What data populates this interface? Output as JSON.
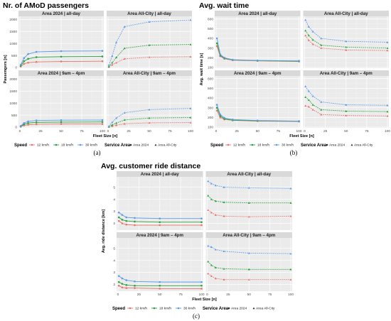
{
  "colors": {
    "12": "#e8746a",
    "18": "#27a33c",
    "30": "#5c9ce6"
  },
  "chart_data": [
    {
      "type": "line",
      "title": "Nr. of AMoD passengers",
      "caption": "(a)",
      "ylabel": "Passengers [n]",
      "xlabel": "Fleet Size [n]",
      "x": [
        1,
        5,
        10,
        20,
        50,
        100
      ],
      "xticks": [
        0,
        25,
        50,
        75,
        100
      ],
      "xlim": [
        0,
        100
      ],
      "ylim": [
        0,
        2100
      ],
      "yticks": [
        0,
        500,
        1000,
        1500,
        2000
      ],
      "panels": [
        {
          "label": "Area 2024 | all-day",
          "marker": "circle",
          "dash": false,
          "series": [
            {
              "speed": "12",
              "values": [
                40,
                150,
                200,
                230,
                250,
                260
              ]
            },
            {
              "speed": "18",
              "values": [
                70,
                260,
                360,
                430,
                450,
                460
              ]
            },
            {
              "speed": "30",
              "values": [
                110,
                390,
                560,
                650,
                680,
                690
              ]
            }
          ]
        },
        {
          "label": "Area All-City | all-day",
          "marker": "triangle",
          "dash": true,
          "series": [
            {
              "speed": "12",
              "values": [
                20,
                110,
                200,
                360,
                430,
                450
              ]
            },
            {
              "speed": "18",
              "values": [
                40,
                200,
                420,
                800,
                930,
                960
              ]
            },
            {
              "speed": "30",
              "values": [
                100,
                480,
                1050,
                1700,
                1900,
                1980
              ]
            }
          ]
        },
        {
          "label": "Area 2024 | 9am – 4pm",
          "marker": "circle",
          "dash": false,
          "series": [
            {
              "speed": "12",
              "values": [
                20,
                70,
                100,
                120,
                130,
                130
              ]
            },
            {
              "speed": "18",
              "values": [
                35,
                120,
                170,
                200,
                210,
                215
              ]
            },
            {
              "speed": "30",
              "values": [
                50,
                170,
                240,
                280,
                290,
                295
              ]
            }
          ]
        },
        {
          "label": "Area All-City | 9am – 4pm",
          "marker": "triangle",
          "dash": true,
          "series": [
            {
              "speed": "12",
              "values": [
                10,
                40,
                80,
                140,
                180,
                190
              ]
            },
            {
              "speed": "18",
              "values": [
                20,
                90,
                170,
                300,
                380,
                400
              ]
            },
            {
              "speed": "30",
              "values": [
                40,
                200,
                380,
                600,
                730,
                780
              ]
            }
          ]
        }
      ]
    },
    {
      "type": "line",
      "title": "Avg. wait time",
      "caption": "(b)",
      "ylabel": "Avg. wait time [s]",
      "xlabel": "Fleet Size [n]",
      "x": [
        1,
        5,
        10,
        20,
        50,
        100
      ],
      "xticks": [
        0,
        25,
        50,
        75,
        100
      ],
      "xlim": [
        0,
        100
      ],
      "ylim": [
        100,
        620
      ],
      "yticks": [
        100,
        200,
        300,
        400,
        500,
        600
      ],
      "panels": [
        {
          "label": "Area 2024 | all-day",
          "marker": "circle",
          "dash": false,
          "series": [
            {
              "speed": "12",
              "values": [
                320,
                215,
                190,
                175,
                168,
                162
              ]
            },
            {
              "speed": "18",
              "values": [
                350,
                225,
                195,
                178,
                170,
                165
              ]
            },
            {
              "speed": "30",
              "values": [
                400,
                235,
                200,
                180,
                172,
                168
              ]
            }
          ]
        },
        {
          "label": "Area All-City | all-day",
          "marker": "triangle",
          "dash": true,
          "series": [
            {
              "speed": "12",
              "values": [
                430,
                380,
                340,
                300,
                280,
                275
              ]
            },
            {
              "speed": "18",
              "values": [
                480,
                430,
                385,
                330,
                310,
                300
              ]
            },
            {
              "speed": "30",
              "values": [
                590,
                520,
                470,
                400,
                370,
                360
              ]
            }
          ]
        },
        {
          "label": "Area 2024 | 9am – 4pm",
          "marker": "circle",
          "dash": false,
          "series": [
            {
              "speed": "12",
              "values": [
                270,
                200,
                180,
                170,
                162,
                158
              ]
            },
            {
              "speed": "18",
              "values": [
                300,
                215,
                185,
                172,
                165,
                160
              ]
            },
            {
              "speed": "30",
              "values": [
                330,
                230,
                195,
                178,
                168,
                162
              ]
            }
          ]
        },
        {
          "label": "Area All-City | 9am – 4pm",
          "marker": "triangle",
          "dash": true,
          "series": [
            {
              "speed": "12",
              "values": [
                320,
                310,
                280,
                230,
                220,
                215
              ]
            },
            {
              "speed": "18",
              "values": [
                410,
                380,
                330,
                280,
                265,
                260
              ]
            },
            {
              "speed": "30",
              "values": [
                520,
                470,
                420,
                360,
                330,
                325
              ]
            }
          ]
        }
      ]
    },
    {
      "type": "line",
      "title": "Avg. customer ride distance",
      "caption": "(c)",
      "ylabel": "Avg. ride distance [km]",
      "xlabel": "Fleet Size [n]",
      "x": [
        1,
        5,
        10,
        20,
        50,
        100
      ],
      "xticks": [
        0,
        25,
        50,
        75,
        100
      ],
      "xlim": [
        0,
        100
      ],
      "ylim": [
        1.5,
        5.8
      ],
      "yticks": [
        2,
        3,
        4,
        5
      ],
      "panels": [
        {
          "label": "Area 2024 | all-day",
          "marker": "circle",
          "dash": false,
          "series": [
            {
              "speed": "12",
              "values": [
                2.2,
                2.0,
                1.9,
                1.85,
                1.85,
                1.85
              ]
            },
            {
              "speed": "18",
              "values": [
                2.5,
                2.3,
                2.2,
                2.15,
                2.1,
                2.1
              ]
            },
            {
              "speed": "30",
              "values": [
                2.9,
                2.7,
                2.5,
                2.45,
                2.4,
                2.4
              ]
            }
          ]
        },
        {
          "label": "Area All-City | all-day",
          "marker": "triangle",
          "dash": true,
          "series": [
            {
              "speed": "12",
              "values": [
                3.1,
                2.9,
                2.7,
                2.6,
                2.55,
                2.6
              ]
            },
            {
              "speed": "18",
              "values": [
                4.3,
                4.0,
                3.85,
                3.75,
                3.7,
                3.7
              ]
            },
            {
              "speed": "30",
              "values": [
                5.5,
                5.3,
                5.15,
                5.0,
                4.95,
                4.9
              ]
            }
          ]
        },
        {
          "label": "Area 2024 | 9am – 4pm",
          "marker": "circle",
          "dash": false,
          "series": [
            {
              "speed": "12",
              "values": [
                1.9,
                1.75,
                1.7,
                1.7,
                1.65,
                1.65
              ]
            },
            {
              "speed": "18",
              "values": [
                2.2,
                2.05,
                1.95,
                1.9,
                1.9,
                1.9
              ]
            },
            {
              "speed": "30",
              "values": [
                2.7,
                2.5,
                2.35,
                2.25,
                2.2,
                2.2
              ]
            }
          ]
        },
        {
          "label": "Area All-City | 9am – 4pm",
          "marker": "triangle",
          "dash": true,
          "series": [
            {
              "speed": "12",
              "values": [
                2.9,
                2.7,
                2.5,
                2.4,
                2.4,
                2.4
              ]
            },
            {
              "speed": "18",
              "values": [
                3.9,
                3.6,
                3.4,
                3.3,
                3.25,
                3.25
              ]
            },
            {
              "speed": "30",
              "values": [
                5.2,
                5.1,
                4.9,
                4.75,
                4.6,
                4.55
              ]
            }
          ]
        }
      ]
    }
  ],
  "legend": {
    "speed_title": "Speed",
    "speed_items": [
      {
        "speed": "12",
        "label": "12 km/h"
      },
      {
        "speed": "18",
        "label": "18 km/h"
      },
      {
        "speed": "30",
        "label": "30 km/h"
      }
    ],
    "area_title": "Service Area",
    "area_items": [
      {
        "marker": "circle",
        "label": "Area 2024"
      },
      {
        "marker": "triangle",
        "label": "Area All-City"
      }
    ]
  }
}
